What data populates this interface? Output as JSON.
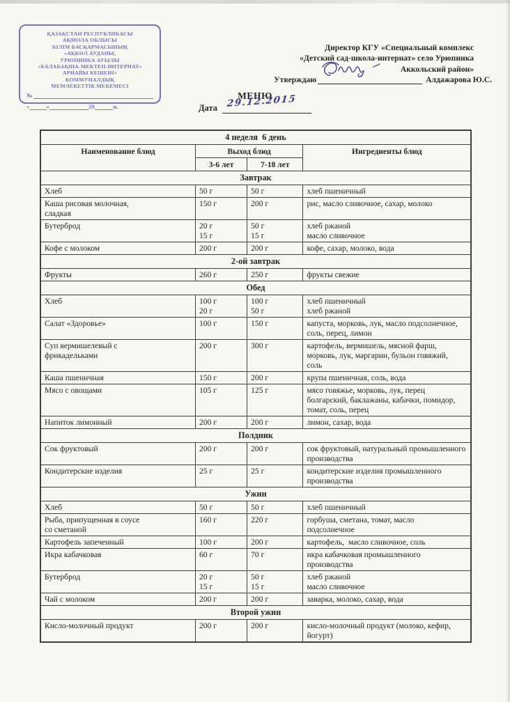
{
  "colors": {
    "paper": "#f7f6f1",
    "text": "#262626",
    "stamp_blue": "#5a60a8",
    "handwriting_ink": "#3c3f86",
    "table_border": "#3f3f3f"
  },
  "stamp": {
    "lines": [
      "ҚАЗАҚСТАН РЕСПУБЛИКАСЫ",
      "АҚМОЛА ОБЛЫСЫ",
      "БІЛІМ БАСҚАРМАСЫНЫҢ",
      "«АҚКӨЛ АУДАНЫ,",
      "УРЮПИНКА АУЫЛЫ",
      "«БАЛАБАҚША-МЕКТЕП-ИНТЕРНАТ»",
      "АРНАЙЫ КЕШЕНІ»",
      "КОММУНАЛДЫҚ",
      "МЕМЛЕКЕТТІК МЕКЕМЕСІ"
    ],
    "number_prefix": "№",
    "quote_open": "«",
    "quote_close": "»",
    "year_prefix": "20",
    "year_suffix": "ж."
  },
  "approval": {
    "line1": "Директор КГУ «Специальный комплекс",
    "line2": "«Детский сад-школа-интернат» село Урюпинка",
    "line3": "Аккольский район»",
    "approve_label": "Утверждаю",
    "approver_name": "Алдажарова Ю.С."
  },
  "page": {
    "title": "МЕНЮ",
    "date_label": "Дата",
    "date_value": "29.12.2015"
  },
  "menu": {
    "week_day_header": "4 неделя  6 день",
    "columns": {
      "name": "Наименование блюд",
      "output": "Выход блюд",
      "age_3_6": "3-6 лет",
      "age_7_18": "7-18 лет",
      "ingredients": "Ингредиенты блюд"
    },
    "sections": [
      {
        "title": "Завтрак",
        "rows": [
          {
            "name": "Хлеб",
            "portion_3_6": "50 г",
            "portion_7_18": "50 г",
            "ingredients": "хлеб пшеничный"
          },
          {
            "name": "Каша рисовая молочная,\nсладкая",
            "portion_3_6": "150 г",
            "portion_7_18": "200 г",
            "ingredients": "рис, масло сливочное, сахар, молоко"
          },
          {
            "name": "Бутерброд",
            "portion_3_6": "20 г\n15 г",
            "portion_7_18": "50 г\n15 г",
            "ingredients": "хлеб ржаной\nмасло сливочное"
          },
          {
            "name": "Кофе с молоком",
            "portion_3_6": "200 г",
            "portion_7_18": "200 г",
            "ingredients": "кофе, сахар, молоко, вода"
          }
        ]
      },
      {
        "title": "2-ой завтрак",
        "rows": [
          {
            "name": "Фрукты",
            "portion_3_6": "260 г",
            "portion_7_18": "250 г",
            "ingredients": "фрукты свежие"
          }
        ]
      },
      {
        "title": "Обед",
        "rows": [
          {
            "name": "Хлеб",
            "portion_3_6": "100 г\n20 г",
            "portion_7_18": "100 г\n50 г",
            "ingredients": "хлеб пшеничный\nхлеб ржаной"
          },
          {
            "name": "Салат «Здоровье»",
            "portion_3_6": "100 г",
            "portion_7_18": "150 г",
            "ingredients": "капуста, морковь, лук, масло подсолнечное,\nсоль, перец, лимон"
          },
          {
            "name": "Суп вермишелевый с\nфрикадельками",
            "portion_3_6": "200 г",
            "portion_7_18": "300 г",
            "ingredients": "картофель, вермишель, мясной фарш,\nморковь, лук, маргарин, бульон говяжий,\nсоль"
          },
          {
            "name": "Каша пшеничная",
            "portion_3_6": "150 г",
            "portion_7_18": "200 г",
            "ingredients": "крупа пшеничная, соль, вода"
          },
          {
            "name": "Мясо с овощами",
            "portion_3_6": "105 г",
            "portion_7_18": "125 г",
            "ingredients": "мясо говяжье, морковь, лук, перец\nболгарский, баклажаны, кабачки, помидор,\nтомат, соль, перец"
          },
          {
            "name": "Напиток лимонный",
            "portion_3_6": "200 г",
            "portion_7_18": "200 г",
            "ingredients": "лимон, сахар, вода"
          }
        ]
      },
      {
        "title": "Полдник",
        "rows": [
          {
            "name": "Сок фруктовый",
            "portion_3_6": "200 г",
            "portion_7_18": "200 г",
            "ingredients": "сок фруктовый, натуральный промышленного\nпроизводства"
          },
          {
            "name": "Кондитерские изделия",
            "portion_3_6": "25 г",
            "portion_7_18": "25 г",
            "ingredients": "кондитерские изделия промышленного\nпроизводства"
          }
        ]
      },
      {
        "title": "Ужин",
        "rows": [
          {
            "name": "Хлеб",
            "portion_3_6": "50 г",
            "portion_7_18": "50 г",
            "ingredients": "хлеб пшеничный"
          },
          {
            "name": "Рыба, припущенная в соусе\nсо сметаной",
            "portion_3_6": "160 г",
            "portion_7_18": "220 г",
            "ingredients": "горбуша, сметана, томат, масло\nподсолнечное"
          },
          {
            "name": "Картофель запеченный",
            "portion_3_6": "100 г",
            "portion_7_18": "200 г",
            "ingredients": "картофель,  масло сливочное, соль"
          },
          {
            "name": "Икра кабачковая",
            "portion_3_6": "60 г",
            "portion_7_18": "70 г",
            "ingredients": "икра кабачковая промышленного\nпроизводства"
          },
          {
            "name": "Бутерброд",
            "portion_3_6": "20 г\n15 г",
            "portion_7_18": "50 г\n15 г",
            "ingredients": "хлеб ржаной\nмасло сливочное"
          },
          {
            "name": "Чай с молоком",
            "portion_3_6": "200 г",
            "portion_7_18": "200 г",
            "ingredients": "заварка, молоко, сахар, вода"
          }
        ]
      },
      {
        "title": "Второй ужин",
        "rows": [
          {
            "name": "Кисло-молочный продукт",
            "portion_3_6": "200 г",
            "portion_7_18": "200 г",
            "ingredients": "кисло-молочный продукт (молоко, кефир,\nйогурт)"
          }
        ]
      }
    ]
  }
}
